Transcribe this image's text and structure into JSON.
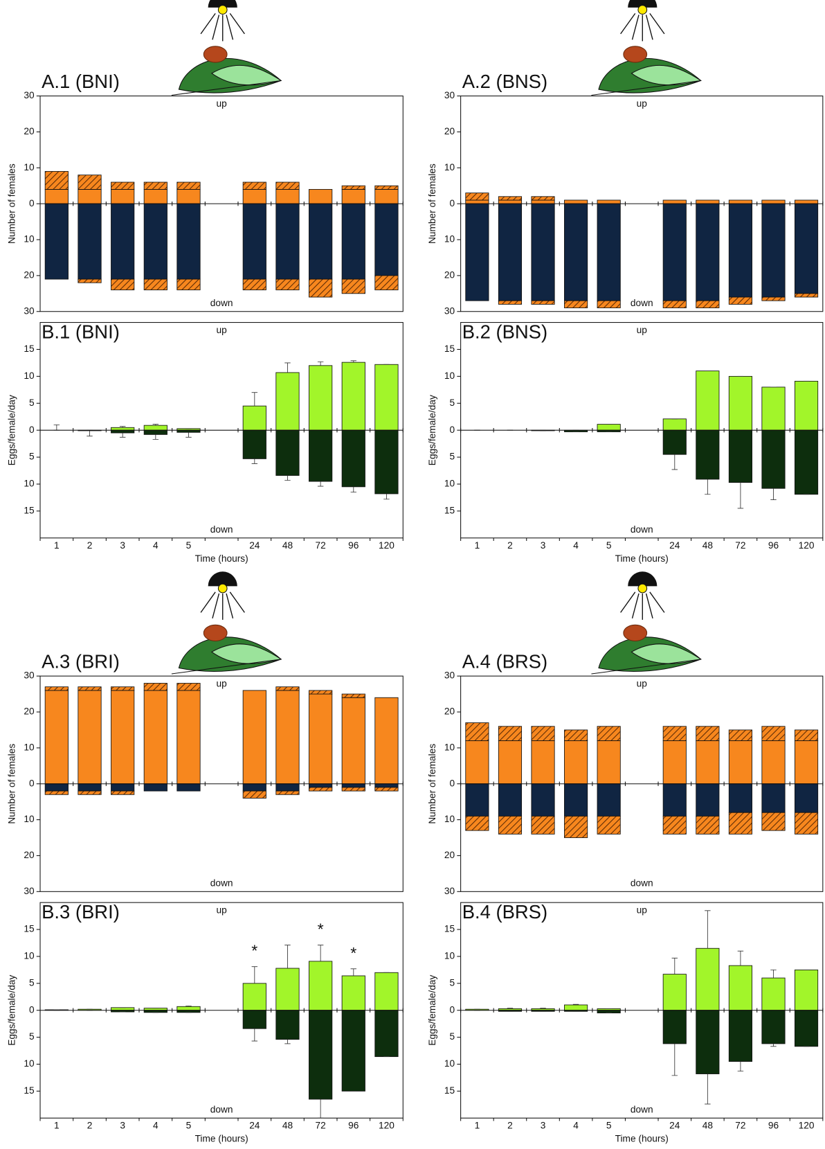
{
  "chart_data": [
    {
      "type": "bar",
      "title": "A.1 (BNI)",
      "y_label": "Number of females",
      "up_label": "up",
      "down_label": "down",
      "ylim": [
        -30,
        30
      ],
      "yticks": [
        30,
        20,
        10,
        0,
        {
          "value": -10,
          "label": "10"
        },
        {
          "value": -20,
          "label": "20"
        },
        {
          "value": -30,
          "label": "30"
        }
      ],
      "series": [
        {
          "color": "#f7871e",
          "hatch": false,
          "values": [
            4,
            4,
            4,
            4,
            4,
            null,
            4,
            4,
            4,
            4,
            4
          ]
        },
        {
          "color": "#f7871e",
          "hatch": true,
          "values": [
            5,
            4,
            2,
            2,
            2,
            null,
            2,
            2,
            0,
            1,
            1
          ]
        },
        {
          "color": "#102542",
          "hatch": false,
          "values": [
            -21,
            -21,
            -21,
            -21,
            -21,
            null,
            -21,
            -21,
            -21,
            -21,
            -20
          ]
        },
        {
          "color": "#f7871e",
          "hatch": true,
          "values": [
            0,
            -1,
            -3,
            -3,
            -3,
            null,
            -3,
            -3,
            -5,
            -4,
            -4
          ]
        }
      ]
    },
    {
      "type": "bar",
      "title": "A.2 (BNS)",
      "y_label": "Number of females",
      "up_label": "up",
      "down_label": "down",
      "ylim": [
        -30,
        30
      ],
      "yticks": [
        30,
        20,
        10,
        0,
        {
          "value": -10,
          "label": "10"
        },
        {
          "value": -20,
          "label": "20"
        },
        {
          "value": -30,
          "label": "30"
        }
      ],
      "series": [
        {
          "color": "#f7871e",
          "hatch": false,
          "values": [
            1,
            1,
            1,
            1,
            1,
            null,
            1,
            1,
            1,
            1,
            1
          ]
        },
        {
          "color": "#f7871e",
          "hatch": true,
          "values": [
            2,
            1,
            1,
            0,
            0,
            null,
            0,
            0,
            0,
            0,
            0
          ]
        },
        {
          "color": "#102542",
          "hatch": false,
          "values": [
            -27,
            -27,
            -27,
            -27,
            -27,
            null,
            -27,
            -27,
            -26,
            -26,
            -25
          ]
        },
        {
          "color": "#f7871e",
          "hatch": true,
          "values": [
            0,
            -1,
            -1,
            -2,
            -2,
            null,
            -2,
            -2,
            -2,
            -1,
            -1
          ]
        }
      ]
    },
    {
      "type": "bar",
      "title": "B.1 (BNI)",
      "y_label": "Eggs/female/day",
      "x_label": "Time (hours)",
      "up_label": "up",
      "down_label": "down",
      "categories": [
        "1",
        "2",
        "3",
        "4",
        "5",
        null,
        "24",
        "48",
        "72",
        "96",
        "120"
      ],
      "ylim": [
        -20,
        20
      ],
      "yticks": [
        15,
        10,
        5,
        0,
        {
          "value": -5,
          "label": "5"
        },
        {
          "value": -10,
          "label": "10"
        },
        {
          "value": -15,
          "label": "15"
        }
      ],
      "series": [
        {
          "color": "#a2f52a",
          "values": [
            0,
            0,
            0.5,
            0.9,
            0.3,
            null,
            4.5,
            10.7,
            12,
            12.6,
            12.2
          ],
          "errors": [
            0,
            0,
            0.2,
            0.2,
            0,
            null,
            2.5,
            1.8,
            0.7,
            0.3,
            0
          ]
        },
        {
          "color": "#0d2e0d",
          "values": [
            0,
            -0.1,
            -0.5,
            -0.8,
            -0.4,
            null,
            -5.3,
            -8.4,
            -9.5,
            -10.5,
            -11.8
          ],
          "errors": [
            1,
            1,
            0.8,
            0.9,
            0.9,
            null,
            0.9,
            0.9,
            0.9,
            1,
            1
          ]
        }
      ]
    },
    {
      "type": "bar",
      "title": "B.2 (BNS)",
      "y_label": "Eggs/female/day",
      "x_label": "Time (hours)",
      "up_label": "up",
      "down_label": "down",
      "categories": [
        "1",
        "2",
        "3",
        "4",
        "5",
        null,
        "24",
        "48",
        "72",
        "96",
        "120"
      ],
      "ylim": [
        -20,
        20
      ],
      "yticks": [
        15,
        10,
        5,
        0,
        {
          "value": -5,
          "label": "5"
        },
        {
          "value": -10,
          "label": "10"
        },
        {
          "value": -15,
          "label": "15"
        }
      ],
      "series": [
        {
          "color": "#a2f52a",
          "values": [
            0,
            0,
            0,
            0,
            1.1,
            null,
            2.1,
            11,
            10,
            8,
            9.1
          ],
          "errors": [
            0,
            0,
            0,
            0,
            0,
            null,
            0,
            0,
            0,
            0,
            0
          ]
        },
        {
          "color": "#0d2e0d",
          "values": [
            0,
            0,
            -0.1,
            -0.3,
            -0.3,
            null,
            -4.5,
            -9.1,
            -9.7,
            -10.8,
            -11.9
          ],
          "errors": [
            0,
            0,
            0,
            0,
            0,
            null,
            2.8,
            2.8,
            4.8,
            2.1,
            0
          ]
        }
      ]
    },
    {
      "type": "bar",
      "title": "A.3 (BRI)",
      "y_label": "Number of females",
      "up_label": "up",
      "down_label": "down",
      "ylim": [
        -30,
        30
      ],
      "yticks": [
        30,
        20,
        10,
        0,
        {
          "value": -10,
          "label": "10"
        },
        {
          "value": -20,
          "label": "20"
        },
        {
          "value": -30,
          "label": "30"
        }
      ],
      "series": [
        {
          "color": "#f7871e",
          "hatch": false,
          "values": [
            26,
            26,
            26,
            26,
            26,
            null,
            26,
            26,
            25,
            24,
            24
          ]
        },
        {
          "color": "#f7871e",
          "hatch": true,
          "values": [
            1,
            1,
            1,
            2,
            2,
            null,
            0,
            1,
            1,
            1,
            0
          ]
        },
        {
          "color": "#102542",
          "hatch": false,
          "values": [
            -2,
            -2,
            -2,
            -2,
            -2,
            null,
            -2,
            -2,
            -1,
            -1,
            -1
          ]
        },
        {
          "color": "#f7871e",
          "hatch": true,
          "values": [
            -1,
            -1,
            -1,
            0,
            0,
            null,
            -2,
            -1,
            -1,
            -1,
            -1
          ]
        }
      ]
    },
    {
      "type": "bar",
      "title": "A.4 (BRS)",
      "y_label": "Number of females",
      "up_label": "up",
      "down_label": "down",
      "ylim": [
        -30,
        30
      ],
      "yticks": [
        30,
        20,
        10,
        0,
        {
          "value": -10,
          "label": "10"
        },
        {
          "value": -20,
          "label": "20"
        },
        {
          "value": -30,
          "label": "30"
        }
      ],
      "series": [
        {
          "color": "#f7871e",
          "hatch": false,
          "values": [
            12,
            12,
            12,
            12,
            12,
            null,
            12,
            12,
            12,
            12,
            12
          ]
        },
        {
          "color": "#f7871e",
          "hatch": true,
          "values": [
            5,
            4,
            4,
            3,
            4,
            null,
            4,
            4,
            3,
            4,
            3
          ]
        },
        {
          "color": "#102542",
          "hatch": false,
          "values": [
            -9,
            -9,
            -9,
            -9,
            -9,
            null,
            -9,
            -9,
            -8,
            -8,
            -8
          ]
        },
        {
          "color": "#f7871e",
          "hatch": true,
          "values": [
            -4,
            -5,
            -5,
            -6,
            -5,
            null,
            -5,
            -5,
            -6,
            -5,
            -6
          ]
        }
      ]
    },
    {
      "type": "bar",
      "title": "B.3 (BRI)",
      "y_label": "Eggs/female/day",
      "x_label": "Time (hours)",
      "up_label": "up",
      "down_label": "down",
      "categories": [
        "1",
        "2",
        "3",
        "4",
        "5",
        null,
        "24",
        "48",
        "72",
        "96",
        "120"
      ],
      "significance": [
        null,
        null,
        null,
        null,
        null,
        null,
        "*",
        null,
        "*",
        "*",
        null
      ],
      "ylim": [
        -20,
        20
      ],
      "yticks": [
        15,
        10,
        5,
        0,
        {
          "value": -5,
          "label": "5"
        },
        {
          "value": -10,
          "label": "10"
        },
        {
          "value": -15,
          "label": "15"
        }
      ],
      "series": [
        {
          "color": "#a2f52a",
          "values": [
            0.1,
            0.2,
            0.5,
            0.4,
            0.7,
            null,
            5,
            7.8,
            9.1,
            6.4,
            7
          ],
          "errors": [
            0,
            0,
            0,
            0,
            0.1,
            null,
            3.1,
            4.3,
            3,
            1.3,
            0
          ]
        },
        {
          "color": "#0d2e0d",
          "values": [
            0,
            0,
            -0.3,
            -0.4,
            -0.4,
            null,
            -3.4,
            -5.4,
            -16.5,
            -15,
            -8.6
          ],
          "errors": [
            0,
            0,
            0,
            0,
            0,
            null,
            2.3,
            0.8,
            3.5,
            0,
            0
          ]
        }
      ]
    },
    {
      "type": "bar",
      "title": "B.4 (BRS)",
      "y_label": "Eggs/female/day",
      "x_label": "Time (hours)",
      "up_label": "up",
      "down_label": "down",
      "categories": [
        "1",
        "2",
        "3",
        "4",
        "5",
        null,
        "24",
        "48",
        "72",
        "96",
        "120"
      ],
      "ylim": [
        -20,
        20
      ],
      "yticks": [
        15,
        10,
        5,
        0,
        {
          "value": -5,
          "label": "5"
        },
        {
          "value": -10,
          "label": "10"
        },
        {
          "value": -15,
          "label": "15"
        }
      ],
      "series": [
        {
          "color": "#a2f52a",
          "values": [
            0.2,
            0.3,
            0.3,
            1,
            0.3,
            null,
            6.7,
            11.5,
            8.3,
            6,
            7.5
          ],
          "errors": [
            0,
            0.1,
            0.1,
            0.1,
            0,
            null,
            3,
            7,
            2.7,
            1.5,
            0
          ]
        },
        {
          "color": "#0d2e0d",
          "values": [
            0,
            -0.2,
            -0.2,
            -0.2,
            -0.5,
            null,
            -6.2,
            -11.8,
            -9.5,
            -6.2,
            -6.7
          ],
          "errors": [
            0,
            0,
            0,
            0,
            0,
            null,
            5.9,
            5.6,
            1.8,
            0.5,
            0
          ]
        }
      ]
    }
  ]
}
